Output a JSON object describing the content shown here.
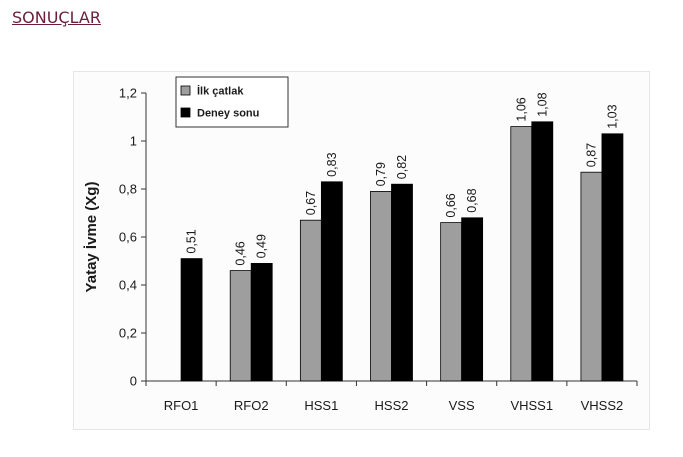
{
  "page": {
    "heading": "SONUÇLAR"
  },
  "colors": {
    "series_1": "#9e9e9e",
    "series_2": "#000000",
    "heading": "#6b1e3c"
  },
  "chart_data": {
    "type": "bar",
    "categories": [
      "RFO1",
      "RFO2",
      "HSS1",
      "HSS2",
      "VSS",
      "VHSS1",
      "VHSS2"
    ],
    "series": [
      {
        "name": "İlk çatlak",
        "values": [
          null,
          0.46,
          0.67,
          0.79,
          0.66,
          1.06,
          0.87
        ],
        "labels": [
          null,
          "0,46",
          "0,67",
          "0,79",
          "0,66",
          "1,06",
          "0,87"
        ]
      },
      {
        "name": "Deney sonu",
        "values": [
          0.51,
          0.49,
          0.83,
          0.82,
          0.68,
          1.08,
          1.03
        ],
        "labels": [
          "0,51",
          "0,49",
          "0,83",
          "0,82",
          "0,68",
          "1,08",
          "1,03"
        ]
      }
    ],
    "ylabel": "Yatay İvme (Xg)",
    "xlabel": "",
    "title": "",
    "ylim": [
      0,
      1.2
    ],
    "yticks": [
      0,
      0.2,
      0.4,
      0.6,
      0.8,
      1,
      1.2
    ],
    "ytick_labels": [
      "0",
      "0,2",
      "0,4",
      "0,6",
      "0,8",
      "1",
      "1,2"
    ],
    "grid": false,
    "legend_position": "top-left"
  }
}
